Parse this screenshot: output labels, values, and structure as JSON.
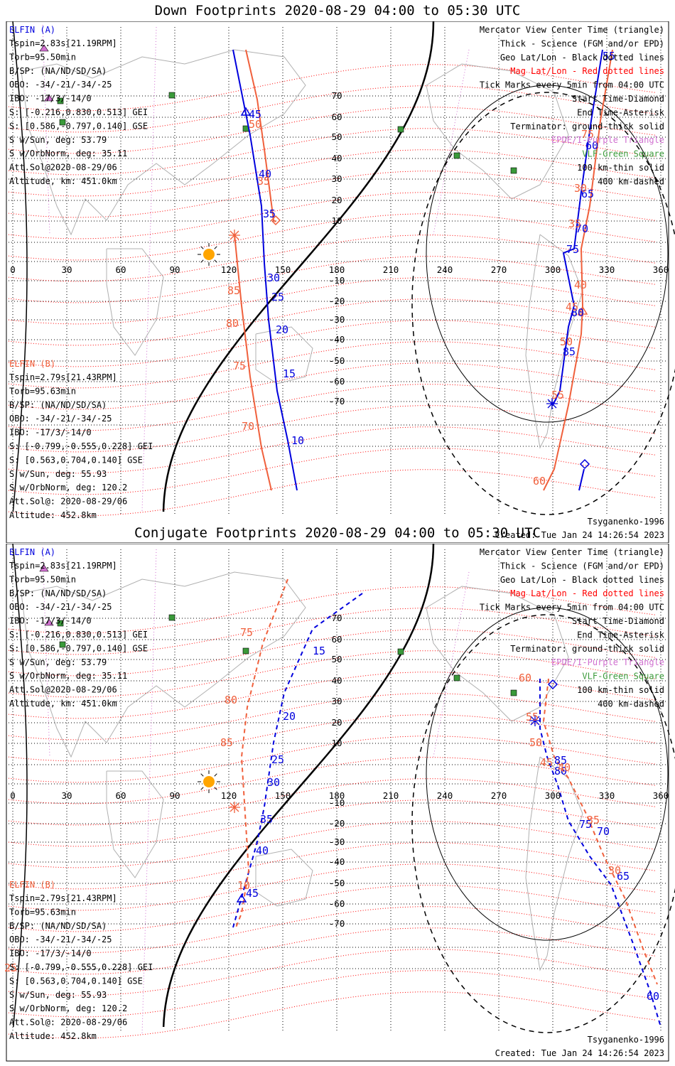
{
  "panels": [
    {
      "title": "Down Footprints 2020-08-29 04:00 to 05:30 UTC",
      "elfin_a": {
        "header": "ELFIN (A)",
        "lines": [
          "Tspin=2.83s[21.19RPM]",
          "Torb=95.50min",
          "B/SP: (NA/ND/SD/SA)",
          "OBO: -34/-21/-34/-25",
          "IBO: -17/3/-14/0",
          "S: [-0.216,0.830,0.513] GEI",
          "S: [0.586,-0.797,0.140] GSE",
          "S w/Sun, deg: 53.79",
          "S w/OrbNorm, deg: 35.11",
          "Att.Sol@2020-08-29/06",
          "Altitude, km: 451.0km"
        ]
      },
      "elfin_b": {
        "header": "ELFIN (B)",
        "lines": [
          "Tspin=2.79s[21.43RPM]",
          "Torb=95.63min",
          "B/SP: (NA/ND/SD/SA)",
          "OBO: -34/-21/-34/-25",
          "IBO: -17/3/-14/0",
          "S: [-0.799,-0.555,0.228] GEI",
          "S: [0.563,0.704,0.140] GSE",
          "S w/Sun, deg: 55.93",
          "S w/OrbNorm, deg: 120.2",
          "Att.Sol@: 2020-08-29/06",
          "Altitude: 452.8km"
        ]
      },
      "legend": [
        "Mercator View Center Time (triangle)",
        "Thick - Science (FGM and/or EPD)",
        "Geo Lat/Lon - Black dotted lines",
        "Mag Lat/Lon - Red dotted lines",
        "Tick Marks every 5min from 04:00 UTC",
        "Start Time-Diamond",
        "End Time-Asterisk",
        "Terminator: ground-thick solid",
        "EPDE/I-Purple Triangle",
        "VLF-Green Square",
        "100 km-thin solid",
        "400 km-dashed"
      ],
      "model": "Tsyganenko-1996",
      "created": "Created: Tue Jan 24 14:26:54 2023",
      "track_a_labels": [
        "45",
        "40",
        "35",
        "30",
        "25",
        "20",
        "15",
        "10",
        "55",
        "60",
        "65",
        "70",
        "75",
        "80",
        "85"
      ],
      "track_b_labels": [
        "50",
        "35",
        "85",
        "80",
        "75",
        "70",
        "75",
        "30",
        "35",
        "40",
        "45",
        "50",
        "55",
        "60"
      ]
    },
    {
      "title": "Conjugate Footprints 2020-08-29 04:00 to 05:30 UTC",
      "elfin_a": {
        "header": "ELFIN (A)",
        "lines": [
          "Tspin=2.83s[21.19RPM]",
          "Torb=95.50min",
          "B/SP: (NA/ND/SD/SA)",
          "OBO: -34/-21/-34/-25",
          "IBO: -17/3/-14/0",
          "S: [-0.216,0.830,0.513] GEI",
          "S: [0.586,-0.797,0.140] GSE",
          "S w/Sun, deg: 53.79",
          "S w/OrbNorm, deg: 35.11",
          "Att.Sol@2020-08-29/06",
          "Altitude, km: 451.0km"
        ]
      },
      "elfin_b": {
        "header": "ELFIN (B)",
        "lines": [
          "Tspin=2.79s[21.43RPM]",
          "Torb=95.63min",
          "B/SP: (NA/ND/SD/SA)",
          "OBO: -34/-21/-34/-25",
          "IBO: -17/3/-14/0",
          "S: [-0.799,-0.555,0.228] GEI",
          "S: [0.563,0.704,0.140] GSE",
          "S w/Sun, deg: 55.93",
          "S w/OrbNorm, deg: 120.2",
          "Att.Sol@: 2020-08-29/06",
          "Altitude: 452.8km"
        ]
      },
      "legend": [
        "Mercator View Center Time (triangle)",
        "Thick - Science (FGM and/or EPD)",
        "Geo Lat/Lon - Black dotted lines",
        "Mag Lat/Lon - Red dotted lines",
        "Tick Marks every 5min from 04:00 UTC",
        "Start Time-Diamond",
        "End Time-Asterisk",
        "Terminator: ground-thick solid",
        "EPDE/I-Purple Triangle",
        "VLF-Green Square",
        "100 km-thin solid",
        "400 km-dashed"
      ],
      "model": "Tsyganenko-1996",
      "created": "Created: Tue Jan 24 14:26:54 2023",
      "track_a_labels": [
        "15",
        "20",
        "25",
        "30",
        "35",
        "40",
        "45",
        "85",
        "80",
        "75",
        "70",
        "65",
        "60"
      ],
      "track_b_labels": [
        "75",
        "80",
        "85",
        "10",
        "25",
        "60",
        "55",
        "50",
        "45",
        "40",
        "35",
        "30"
      ]
    }
  ],
  "lon_ticks": [
    "0",
    "30",
    "60",
    "90",
    "120",
    "150",
    "180",
    "210",
    "240",
    "270",
    "300",
    "330",
    "360"
  ],
  "lat_ticks": [
    "70",
    "60",
    "50",
    "40",
    "30",
    "20",
    "10",
    "-10",
    "-20",
    "-30",
    "-40",
    "-50",
    "-60",
    "-70"
  ],
  "colors": {
    "elfin_a": "#0000dd",
    "elfin_b": "#f0603c",
    "mag_grid": "#ff0000",
    "geo_grid": "#000000",
    "epde_triangle": "#d070d0",
    "vlf_square": "#3a9a3a",
    "terminator": "#000000",
    "sun": "#ffa500"
  }
}
